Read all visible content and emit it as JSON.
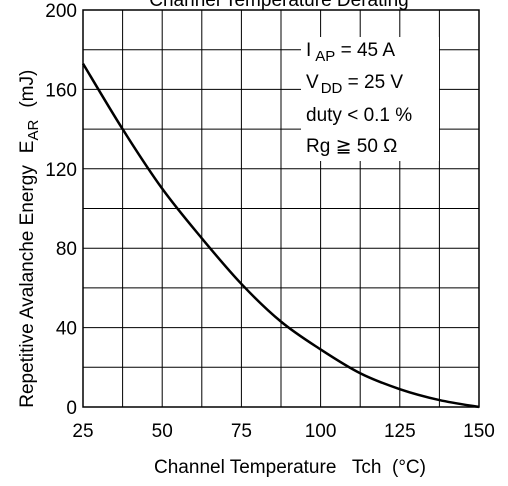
{
  "chart_data": {
    "type": "line",
    "title": "Channel Temperature Derating",
    "xlabel": "Channel Temperature   Tch  (°C)",
    "ylabel_main": "Repetitive Avalanche Energy",
    "ylabel_symbol": "E",
    "ylabel_symbol_sub": "AR",
    "ylabel_unit": "(mJ)",
    "xlim": [
      25,
      150
    ],
    "ylim": [
      0,
      200
    ],
    "x_ticks": [
      "25",
      "50",
      "75",
      "100",
      "125",
      "150"
    ],
    "y_ticks": [
      "0",
      "40",
      "80",
      "120",
      "160",
      "200"
    ],
    "grid": true,
    "series": [
      {
        "x": [
          25,
          37.5,
          50,
          62.5,
          75,
          87.5,
          100,
          112.5,
          125,
          137.5,
          150
        ],
        "y": [
          173,
          140,
          110,
          85,
          62,
          43,
          29,
          17,
          9,
          3.5,
          0
        ]
      }
    ],
    "annotations": {
      "line1": {
        "main": "I",
        "sub": "AP",
        "rest": " = 45 A"
      },
      "line2": {
        "main": "V",
        "sub": "DD",
        "rest": " = 25 V"
      },
      "line3": "duty < 0.1 %",
      "line4": "Rg ≧ 50 Ω"
    }
  }
}
